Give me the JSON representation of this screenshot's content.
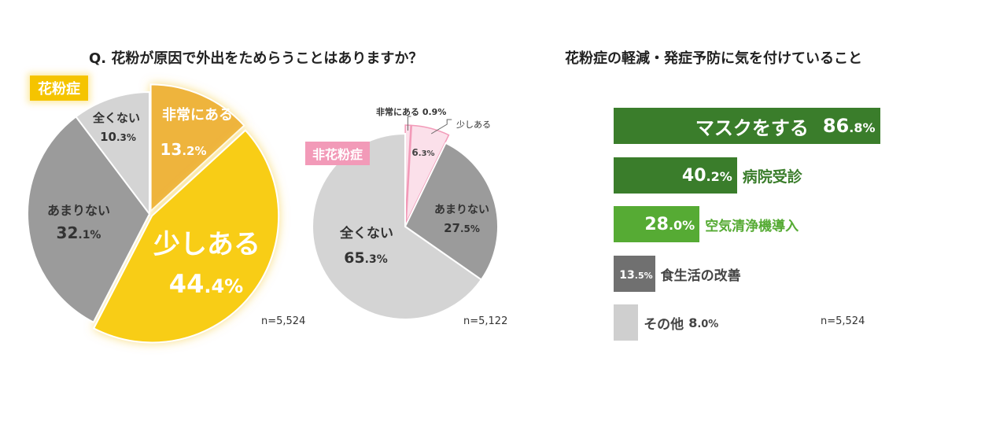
{
  "left_title": "Q. 花粉が原因で外出をためらうことはありますか？",
  "right_title": "花粉症の軽減・発症予防に気を付けていること",
  "tags": {
    "pollen": "花粉症",
    "non_pollen": "非花粉症"
  },
  "colors": {
    "yellow": "#f8cd15",
    "orange": "#eeb43c",
    "dark_gray": "#9b9b9b",
    "light_gray": "#d4d4d4",
    "pink_light": "#fbe0ea",
    "pink_tag": "#f29ab8",
    "green_dark": "#3a7d2b",
    "green_light": "#56ab34",
    "gray_bar": "#707070",
    "gray_bar_light": "#cfcfcf"
  },
  "chart_data": [
    {
      "type": "pie",
      "group": "花粉症",
      "n_label": "n=5,524",
      "slices": [
        {
          "label": "非常にある",
          "value": 13.2,
          "value_text": "13.2%"
        },
        {
          "label": "少しある",
          "value": 44.4,
          "value_text": "44.4%"
        },
        {
          "label": "あまりない",
          "value": 32.1,
          "value_text": "32.1%"
        },
        {
          "label": "全くない",
          "value": 10.3,
          "value_text": "10.3%"
        }
      ]
    },
    {
      "type": "pie",
      "group": "非花粉症",
      "n_label": "n=5,122",
      "slices": [
        {
          "label": "非常にある",
          "value": 0.9,
          "value_text": "0.9%"
        },
        {
          "label": "少しある",
          "value": 6.3,
          "value_text": "6.3%"
        },
        {
          "label": "あまりない",
          "value": 27.5,
          "value_text": "27.5%"
        },
        {
          "label": "全くない",
          "value": 65.3,
          "value_text": "65.3%"
        }
      ]
    },
    {
      "type": "bar",
      "orientation": "horizontal",
      "n_label": "n=5,524",
      "xlim": [
        0,
        100
      ],
      "items": [
        {
          "label": "マスクをする",
          "value": 86.8,
          "value_text": "86.8%"
        },
        {
          "label": "病院受診",
          "value": 40.2,
          "value_text": "40.2%"
        },
        {
          "label": "空気清浄機導入",
          "value": 28.0,
          "value_text": "28.0%"
        },
        {
          "label": "食生活の改善",
          "value": 13.5,
          "value_text": "13.5%"
        },
        {
          "label": "その他",
          "value": 8.0,
          "value_text": "8.0%"
        }
      ]
    }
  ]
}
